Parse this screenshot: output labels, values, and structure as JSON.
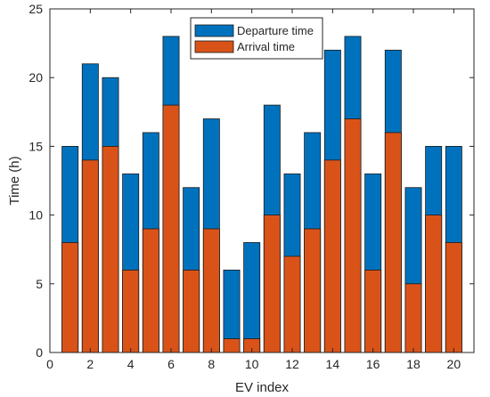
{
  "chart_data": {
    "type": "bar",
    "xlabel": "EV index",
    "ylabel": "Time (h)",
    "xlim": [
      0,
      21
    ],
    "ylim": [
      0,
      25
    ],
    "x_ticks": [
      0,
      2,
      4,
      6,
      8,
      10,
      12,
      14,
      16,
      18,
      20
    ],
    "y_ticks": [
      0,
      5,
      10,
      15,
      20,
      25
    ],
    "grid": false,
    "legend_position": "top-center",
    "categories": [
      1,
      2,
      3,
      4,
      5,
      6,
      7,
      8,
      9,
      10,
      11,
      12,
      13,
      14,
      15,
      16,
      17,
      18,
      19,
      20
    ],
    "series": [
      {
        "name": "Departure time",
        "color": "#0072BD",
        "values": [
          15,
          21,
          20,
          13,
          16,
          23,
          12,
          17,
          6,
          8,
          18,
          13,
          16,
          22,
          23,
          13,
          22,
          12,
          15,
          15
        ]
      },
      {
        "name": "Arrival time",
        "color": "#D95319",
        "values": [
          8,
          14,
          15,
          6,
          9,
          18,
          6,
          9,
          1,
          1,
          10,
          7,
          9,
          14,
          17,
          6,
          16,
          5,
          10,
          8
        ]
      }
    ]
  }
}
